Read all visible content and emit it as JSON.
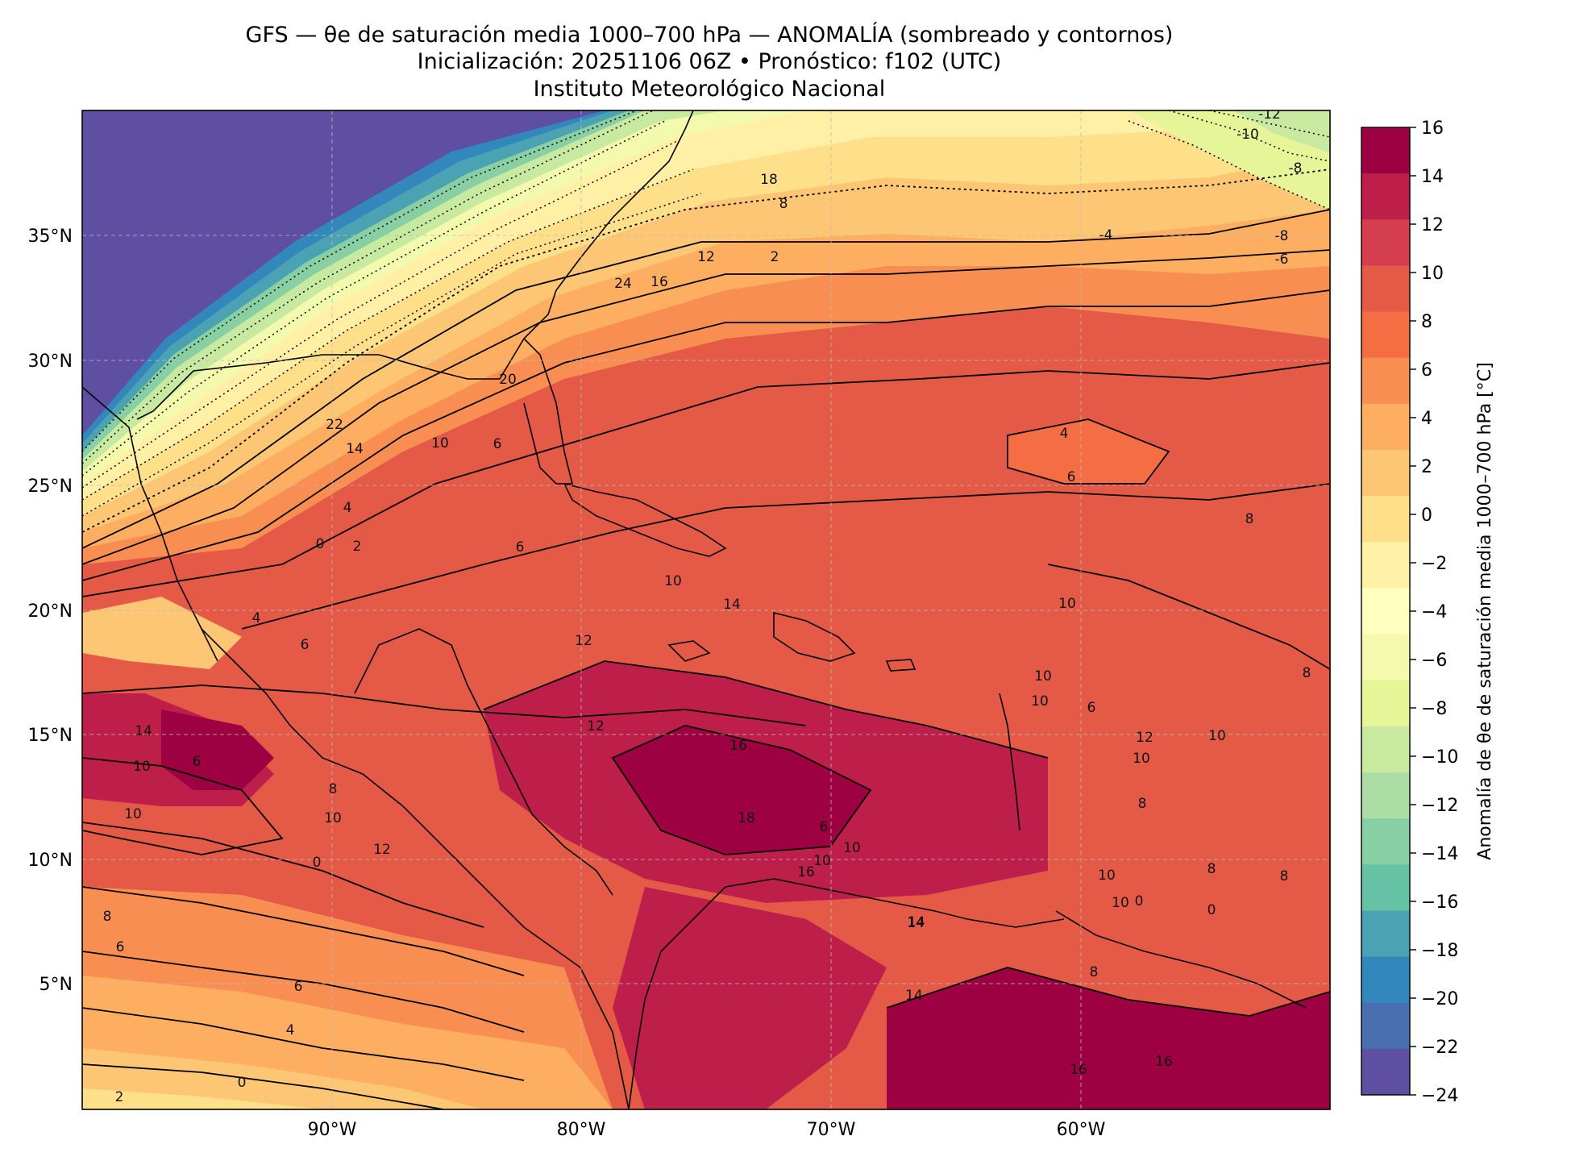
{
  "title": {
    "line1": "GFS — θe de saturación media 1000–700 hPa — ANOMALÍA (sombreado y contornos)",
    "line2": "Inicialización: 20251106 06Z   •   Pronóstico: f102 (UTC)",
    "line3": "Instituto Meteorológico Nacional"
  },
  "map": {
    "lon_range": [
      -100,
      -50
    ],
    "lat_range": [
      0,
      39
    ],
    "lat_ticks": [
      "35°N",
      "30°N",
      "25°N",
      "20°N",
      "15°N",
      "10°N",
      "5°N"
    ],
    "lon_ticks": [
      "90°W",
      "80°W",
      "70°W",
      "60°W"
    ],
    "gridlines": true,
    "contour_labels": [
      "-12",
      "-10",
      "-8",
      "-8",
      "-6",
      "-4",
      "24",
      "18",
      "16",
      "12",
      "8",
      "2",
      "22",
      "20",
      "14",
      "10",
      "6",
      "4",
      "0",
      "2",
      "6",
      "4",
      "6",
      "10",
      "14",
      "12",
      "12",
      "14",
      "10",
      "6",
      "8",
      "10",
      "12",
      "16",
      "18",
      "16",
      "10",
      "14",
      "14",
      "16",
      "16",
      "8",
      "10",
      "8",
      "8",
      "6",
      "4",
      "0",
      "0",
      "2",
      "4",
      "6",
      "6",
      "8",
      "10",
      "10",
      "10",
      "10",
      "10",
      "8",
      "8",
      "10",
      "6",
      "6",
      "8",
      "10",
      "14",
      "12",
      "10",
      "0",
      "0"
    ]
  },
  "colorbar": {
    "label": "Anomalía de θe de saturación media 1000–700 hPa [°C]",
    "ticks": [
      "16",
      "14",
      "12",
      "10",
      "8",
      "6",
      "4",
      "2",
      "0",
      "−2",
      "−4",
      "−6",
      "−8",
      "−10",
      "−12",
      "−14",
      "−16",
      "−18",
      "−20",
      "−22",
      "−24"
    ],
    "colors": [
      "#9e0142",
      "#be1e4a",
      "#d53e4f",
      "#e55a47",
      "#f46d43",
      "#f98e52",
      "#fdae61",
      "#fdc675",
      "#fee08b",
      "#fff0a6",
      "#ffffbf",
      "#f3faad",
      "#e6f598",
      "#c8e9a0",
      "#abdda4",
      "#88cfa4",
      "#66c2a5",
      "#4aa2b2",
      "#3288bd",
      "#4a6fb1",
      "#5e4fa2"
    ]
  }
}
